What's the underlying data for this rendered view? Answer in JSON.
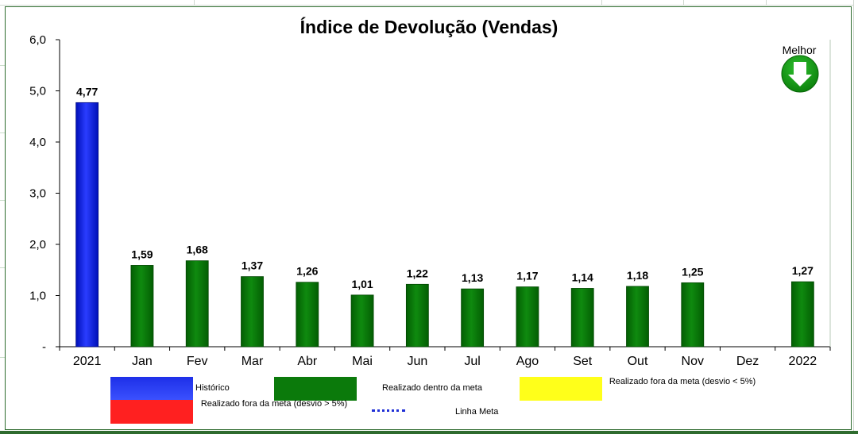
{
  "chart_data": {
    "type": "bar",
    "title": "Índice de Devolução (Vendas)",
    "categories": [
      "2021",
      "Jan",
      "Fev",
      "Mar",
      "Abr",
      "Mai",
      "Jun",
      "Jul",
      "Ago",
      "Set",
      "Out",
      "Nov",
      "Dez",
      "2022"
    ],
    "values": [
      4.77,
      1.59,
      1.68,
      1.37,
      1.26,
      1.01,
      1.22,
      1.13,
      1.17,
      1.14,
      1.18,
      1.25,
      null,
      1.27
    ],
    "data_labels": [
      "4,77",
      "1,59",
      "1,68",
      "1,37",
      "1,26",
      "1,01",
      "1,22",
      "1,13",
      "1,17",
      "1,14",
      "1,18",
      "1,25",
      "",
      "1,27"
    ],
    "bar_kind": [
      "historico",
      "dentro",
      "dentro",
      "dentro",
      "dentro",
      "dentro",
      "dentro",
      "dentro",
      "dentro",
      "dentro",
      "dentro",
      "dentro",
      "dentro",
      "dentro"
    ],
    "ylim": [
      0,
      6
    ],
    "yticks": [
      0,
      1,
      2,
      3,
      4,
      5,
      6
    ],
    "ytick_labels": [
      "-",
      "1,0",
      "2,0",
      "3,0",
      "4,0",
      "5,0",
      "6,0"
    ],
    "xlabel": "",
    "ylabel": "",
    "grid": false,
    "best_direction": {
      "label": "Melhor",
      "icon": "down-arrow-icon",
      "color": "#119a11"
    },
    "legend": [
      {
        "label": "Histórico",
        "color": "#1d2fe8",
        "kind": "swatch"
      },
      {
        "label": "Realizado dentro da meta",
        "color": "#0b7a0b",
        "kind": "swatch"
      },
      {
        "label": "Realizado fora da meta (desvio < 5%)",
        "color": "#ffff1a",
        "kind": "swatch"
      },
      {
        "label": "Realizado fora da meta (desvio > 5%)",
        "color": "#ff2020",
        "kind": "swatch"
      },
      {
        "label": "Linha Meta",
        "color": "#1f2fd6",
        "kind": "dotted-line"
      }
    ],
    "colors": {
      "historico": "#1d2fe8",
      "dentro": "#0b7a0b"
    }
  }
}
